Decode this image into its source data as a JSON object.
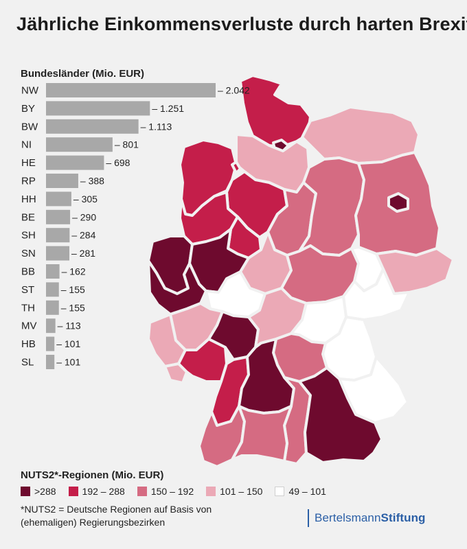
{
  "title": "Jährliche Einkommensverluste durch harten Brexit",
  "chart_data": [
    {
      "type": "bar",
      "orientation": "horizontal",
      "title": "Bundesländer (Mio. EUR)",
      "categories": [
        "NW",
        "BY",
        "BW",
        "NI",
        "HE",
        "RP",
        "HH",
        "BE",
        "SH",
        "SN",
        "BB",
        "ST",
        "TH",
        "MV",
        "HB",
        "SL"
      ],
      "values": [
        2042,
        1251,
        1113,
        801,
        698,
        388,
        305,
        290,
        284,
        281,
        162,
        155,
        155,
        113,
        101,
        101
      ],
      "value_labels": [
        "– 2.042",
        "– 1.251",
        "– 1.113",
        "– 801",
        "– 698",
        "– 388",
        "– 305",
        "– 290",
        "– 284",
        "– 281",
        "– 162",
        "– 155",
        "– 155",
        "– 113",
        "– 101",
        "– 101"
      ],
      "bar_color": "#a8a8a8"
    },
    {
      "type": "choropleth",
      "title": "NUTS2*-Regionen (Mio. EUR)",
      "legend": [
        {
          "label": ">288",
          "color": "#6e0a2e"
        },
        {
          "label": "192 – 288",
          "color": "#c41e4a"
        },
        {
          "label": "150 – 192",
          "color": "#d56b82"
        },
        {
          "label": "101 – 150",
          "color": "#eba9b6"
        },
        {
          "label": "49 – 101",
          "color": "#ffffff"
        }
      ]
    }
  ],
  "footnote": {
    "line1": "*NUTS2 = Deutsche Regionen auf Basis von",
    "line2": "(ehemaligen) Regierungsbezirken"
  },
  "brand": {
    "part1": "Bertelsmann",
    "part2": "Stiftung"
  },
  "colors": {
    "background": "#f1f1f1",
    "brand": "#2b5fa6"
  }
}
